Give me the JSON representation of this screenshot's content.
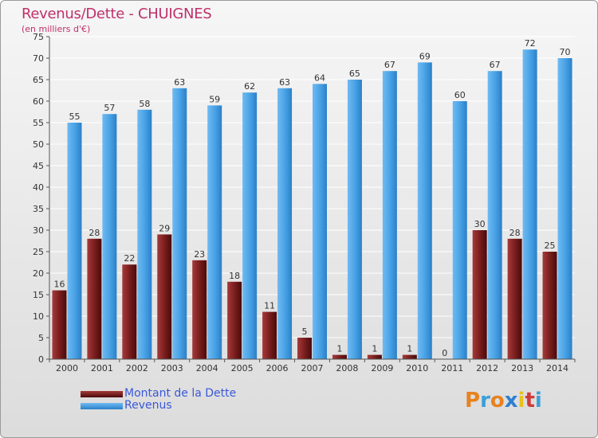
{
  "title": "Revenus/Dette - CHUIGNES",
  "subtitle": "(en milliers d'€)",
  "logo_text": "Proxiti",
  "colors": {
    "debt": "#7a1e1e",
    "revenue": "#4aa3e6",
    "title": "#c0306a",
    "legend_text": "#3a58d8"
  },
  "chart_data": {
    "type": "bar",
    "title": "Revenus/Dette - CHUIGNES",
    "subtitle": "(en milliers d'€)",
    "categories": [
      "2000",
      "2001",
      "2002",
      "2003",
      "2004",
      "2005",
      "2006",
      "2007",
      "2008",
      "2009",
      "2010",
      "2011",
      "2012",
      "2013",
      "2014"
    ],
    "series": [
      {
        "name": "Montant de la Dette",
        "values": [
          16,
          28,
          22,
          29,
          23,
          18,
          11,
          5,
          1,
          1,
          1,
          0,
          30,
          28,
          25
        ]
      },
      {
        "name": "Revenus",
        "values": [
          55,
          57,
          58,
          63,
          59,
          62,
          63,
          64,
          65,
          67,
          69,
          60,
          67,
          72,
          70
        ]
      }
    ],
    "ylim": [
      0,
      75
    ],
    "yticks": [
      0,
      5,
      10,
      15,
      20,
      25,
      30,
      35,
      40,
      45,
      50,
      55,
      60,
      65,
      70,
      75
    ],
    "grid": true,
    "legend_position": "bottom-left"
  }
}
